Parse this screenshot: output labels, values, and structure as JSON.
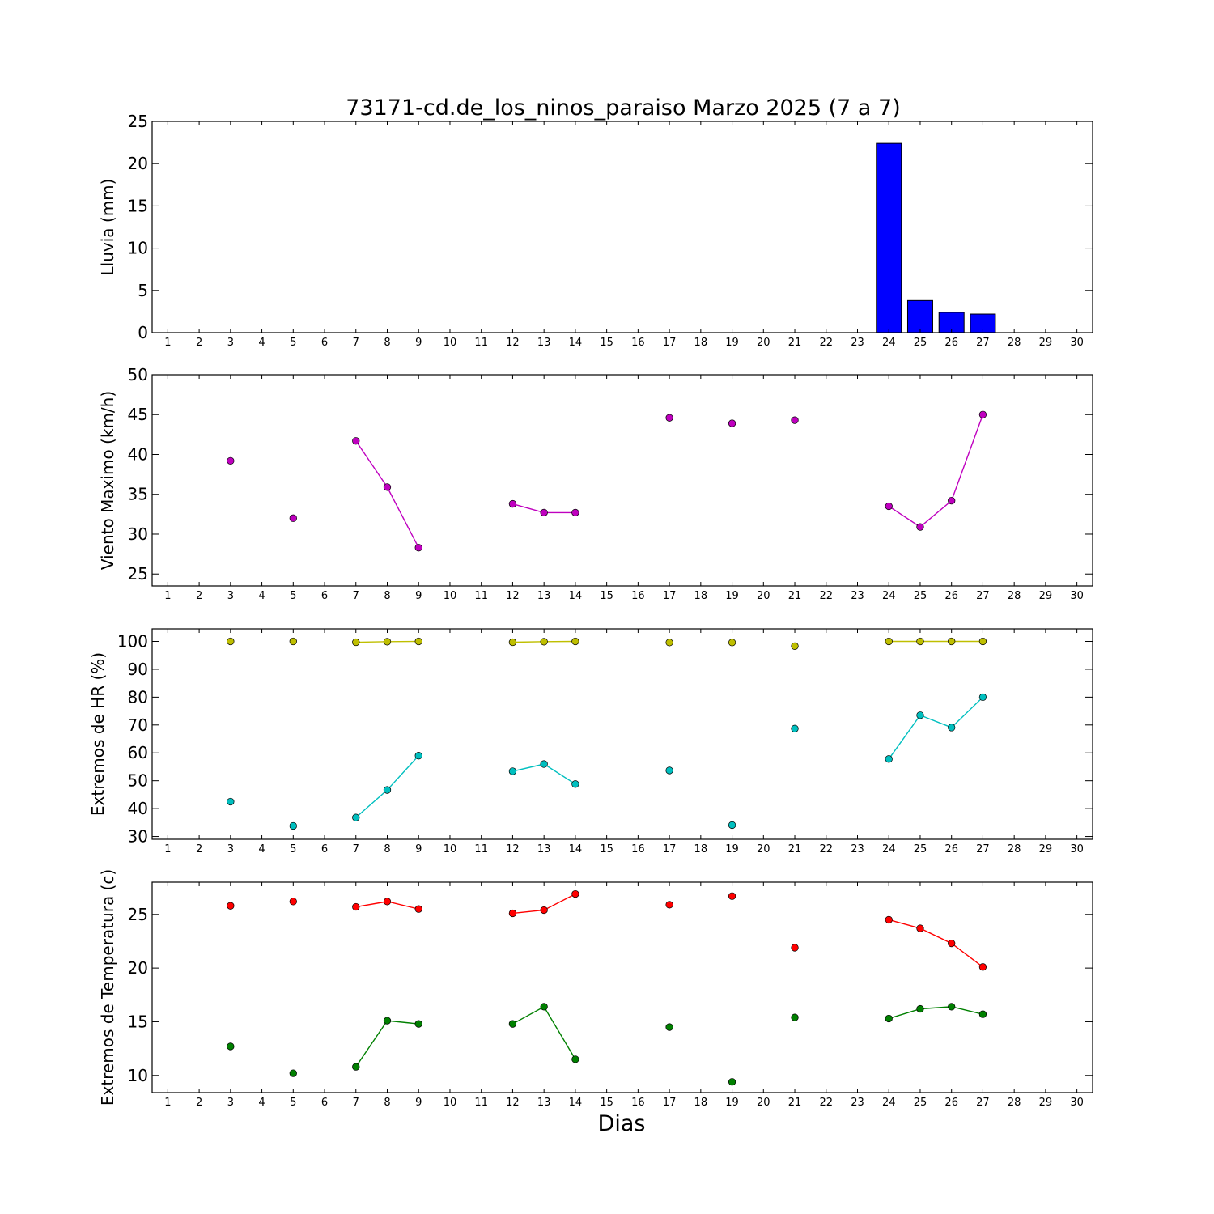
{
  "title": "73171-cd.de_los_ninos_paraiso Marzo 2025  (7 a 7)",
  "xlabel": "Dias",
  "x_ticks": [
    "1",
    "2",
    "3",
    "4",
    "5",
    "6",
    "7",
    "8",
    "9",
    "10",
    "11",
    "12",
    "13",
    "14",
    "15",
    "16",
    "17",
    "18",
    "19",
    "20",
    "21",
    "22",
    "23",
    "24",
    "25",
    "26",
    "27",
    "28",
    "29",
    "30"
  ],
  "chart_data": [
    {
      "type": "bar",
      "ylabel": "Lluvia (mm)",
      "xlim": [
        0.5,
        30.5
      ],
      "ylim": [
        0,
        25
      ],
      "y_ticks": [
        0,
        5,
        10,
        15,
        20,
        25
      ],
      "series": [
        {
          "color": "#0000ff",
          "points": [
            [
              3,
              0
            ],
            [
              5,
              0
            ],
            [
              7,
              0
            ],
            [
              8,
              0
            ],
            [
              9,
              0
            ],
            [
              12,
              0
            ],
            [
              13,
              0
            ],
            [
              14,
              0
            ],
            [
              17,
              0
            ],
            [
              19,
              0
            ],
            [
              21,
              0
            ],
            [
              24,
              22.4
            ],
            [
              25,
              3.8
            ],
            [
              26,
              2.4
            ],
            [
              27,
              2.2
            ]
          ]
        }
      ]
    },
    {
      "type": "line",
      "ylabel": "Viento Maximo (km/h)",
      "xlim": [
        0.5,
        30.5
      ],
      "ylim": [
        23.5,
        50
      ],
      "y_ticks": [
        25,
        30,
        35,
        40,
        45,
        50
      ],
      "series": [
        {
          "color": "#bf00bf",
          "points": [
            [
              3,
              39.2
            ],
            [
              5,
              32.0
            ],
            [
              7,
              41.7
            ],
            [
              8,
              35.9
            ],
            [
              9,
              28.3
            ],
            [
              12,
              33.8
            ],
            [
              13,
              32.7
            ],
            [
              14,
              32.7
            ],
            [
              17,
              44.6
            ],
            [
              19,
              43.9
            ],
            [
              21,
              44.3
            ],
            [
              24,
              33.5
            ],
            [
              25,
              30.9
            ],
            [
              26,
              34.2
            ],
            [
              27,
              45.0
            ]
          ]
        }
      ]
    },
    {
      "type": "line",
      "ylabel": "Extremos de HR (%)",
      "xlim": [
        0.5,
        30.5
      ],
      "ylim": [
        29,
        104.5
      ],
      "y_ticks": [
        30,
        40,
        50,
        60,
        70,
        80,
        90,
        100
      ],
      "series": [
        {
          "color": "#bfbf00",
          "points": [
            [
              3,
              100
            ],
            [
              5,
              100
            ],
            [
              7,
              99.7
            ],
            [
              8,
              99.9
            ],
            [
              9,
              100
            ],
            [
              12,
              99.7
            ],
            [
              13,
              99.9
            ],
            [
              14,
              100
            ],
            [
              17,
              99.6
            ],
            [
              19,
              99.6
            ],
            [
              21,
              98.3
            ],
            [
              24,
              100
            ],
            [
              25,
              100
            ],
            [
              26,
              100
            ],
            [
              27,
              100
            ]
          ]
        },
        {
          "color": "#00bfbf",
          "points": [
            [
              3,
              42.5
            ],
            [
              5,
              33.8
            ],
            [
              7,
              36.8
            ],
            [
              8,
              46.7
            ],
            [
              9,
              59.0
            ],
            [
              12,
              53.4
            ],
            [
              13,
              56.0
            ],
            [
              14,
              48.8
            ],
            [
              17,
              53.7
            ],
            [
              19,
              34.1
            ],
            [
              21,
              68.7
            ],
            [
              24,
              57.8
            ],
            [
              25,
              73.5
            ],
            [
              26,
              69.1
            ],
            [
              27,
              80.0
            ]
          ]
        }
      ]
    },
    {
      "type": "line",
      "ylabel": "Extremos de Temperatura (c)",
      "xlim": [
        0.5,
        30.5
      ],
      "ylim": [
        8.4,
        28.0
      ],
      "y_ticks": [
        10,
        15,
        20,
        25
      ],
      "series": [
        {
          "color": "#ff0000",
          "points": [
            [
              3,
              25.8
            ],
            [
              5,
              26.2
            ],
            [
              7,
              25.7
            ],
            [
              8,
              26.2
            ],
            [
              9,
              25.5
            ],
            [
              12,
              25.1
            ],
            [
              13,
              25.4
            ],
            [
              14,
              26.9
            ],
            [
              17,
              25.9
            ],
            [
              19,
              26.7
            ],
            [
              21,
              21.9
            ],
            [
              24,
              24.5
            ],
            [
              25,
              23.7
            ],
            [
              26,
              22.3
            ],
            [
              27,
              20.1
            ]
          ]
        },
        {
          "color": "#008000",
          "points": [
            [
              3,
              12.7
            ],
            [
              5,
              10.2
            ],
            [
              7,
              10.8
            ],
            [
              8,
              15.1
            ],
            [
              9,
              14.8
            ],
            [
              12,
              14.8
            ],
            [
              13,
              16.4
            ],
            [
              14,
              11.5
            ],
            [
              17,
              14.5
            ],
            [
              19,
              9.4
            ],
            [
              21,
              15.4
            ],
            [
              24,
              15.3
            ],
            [
              25,
              16.2
            ],
            [
              26,
              16.4
            ],
            [
              27,
              15.7
            ]
          ]
        }
      ]
    }
  ]
}
